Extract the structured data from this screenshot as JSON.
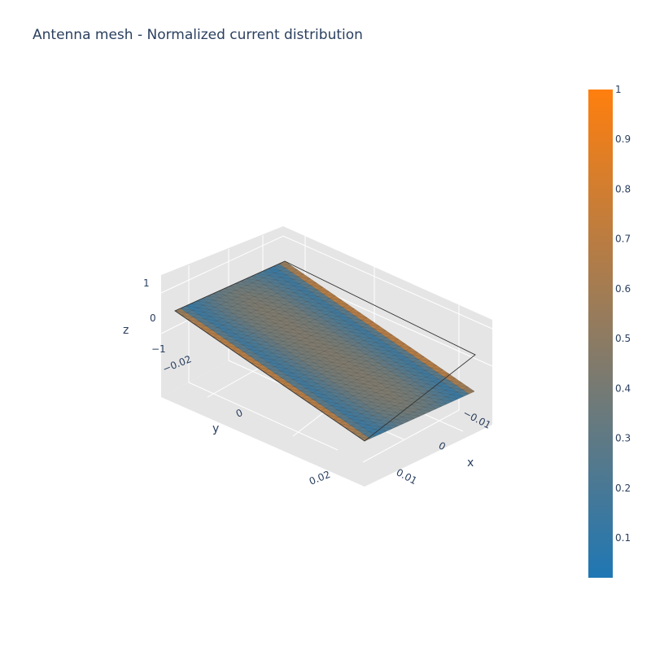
{
  "chart_data": {
    "type": "mesh3d",
    "title": "Antenna mesh - Normalized current distribution",
    "axes": {
      "x": {
        "title": "x",
        "ticks": [
          "−0.01",
          "0",
          "0.01"
        ],
        "tick_values": [
          -0.01,
          0,
          0.01
        ],
        "range": [
          -0.015,
          0.015
        ]
      },
      "y": {
        "title": "y",
        "ticks": [
          "−0.02",
          "0",
          "0.02"
        ],
        "tick_values": [
          -0.02,
          0,
          0.02
        ],
        "range": [
          -0.025,
          0.025
        ]
      },
      "z": {
        "title": "z",
        "ticks": [
          "1",
          "0",
          "−1"
        ],
        "tick_values": [
          1,
          0,
          -1
        ],
        "range": [
          -1,
          1
        ]
      }
    },
    "surface": {
      "z": 0,
      "x_extent": [
        -0.015,
        0.015
      ],
      "y_extent": [
        -0.025,
        0.025
      ],
      "grid_cells_x": 20,
      "grid_cells_y": 30
    },
    "current_profile": {
      "description_values": "normalized current vs x position across the strip; edges high, center mid, near-edge dip low",
      "x": [
        -0.015,
        -0.0135,
        -0.012,
        -0.01,
        -0.005,
        0,
        0.005,
        0.01,
        0.012,
        0.0135,
        0.015
      ],
      "value": [
        0.95,
        0.4,
        0.15,
        0.2,
        0.38,
        0.45,
        0.38,
        0.2,
        0.15,
        0.4,
        0.95
      ]
    },
    "colorscale": {
      "min_color": "#1f77b4",
      "max_color": "#ff7f0e",
      "range": [
        0.02,
        1
      ]
    },
    "colorbar": {
      "ticks": [
        "1",
        "0.9",
        "0.8",
        "0.7",
        "0.6",
        "0.5",
        "0.4",
        "0.3",
        "0.2",
        "0.1"
      ],
      "tick_values": [
        1,
        0.9,
        0.8,
        0.7,
        0.6,
        0.5,
        0.4,
        0.3,
        0.2,
        0.1
      ]
    },
    "colors": {
      "pane": "#e5e5e5",
      "grid": "#ffffff",
      "mesh_line": "#444444",
      "text": "#2a3f5f"
    }
  }
}
